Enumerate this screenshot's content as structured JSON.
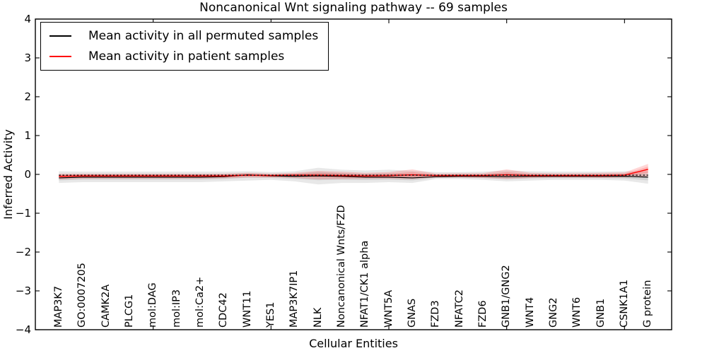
{
  "title": "Noncanonical Wnt signaling pathway -- 69 samples",
  "axes": {
    "xlabel": "Cellular Entities",
    "ylabel": "Inferred Activity",
    "y_tick_labels": [
      "4",
      "3",
      "2",
      "1",
      "0",
      "−1",
      "−2",
      "−3",
      "−4"
    ],
    "y_tick_values": [
      4,
      3,
      2,
      1,
      0,
      -1,
      -2,
      -3,
      -4
    ],
    "x_axis_tick_values": [
      5,
      10,
      15,
      20,
      25
    ]
  },
  "legend": {
    "items": [
      {
        "label": "Mean activity in all permuted samples",
        "color": "#000000"
      },
      {
        "label": "Mean activity in patient samples",
        "color": "#ff0000"
      }
    ]
  },
  "colors": {
    "permuted_line": "#000000",
    "patient_line": "#ff0000",
    "permuted_band": "rgba(0,0,0,0.09)",
    "patient_band": "rgba(255,0,0,0.16)",
    "frame": "#000000",
    "background": "#ffffff"
  },
  "chart_data": {
    "type": "line",
    "title": "Noncanonical Wnt signaling pathway -- 69 samples",
    "xlabel": "Cellular Entities",
    "ylabel": "Inferred Activity",
    "ylim": [
      -4,
      4
    ],
    "xlim": [
      0,
      27
    ],
    "grid": false,
    "legend_position": "upper left",
    "categories": [
      "MAP3K7",
      "GO:0007205",
      "CAMK2A",
      "PLCG1",
      "mol:DAG",
      "mol:IP3",
      "mol:Ca2+",
      "CDC42",
      "WNT11",
      "YES1",
      "MAP3K7IP1",
      "NLK",
      "Noncanonical Wnts/FZD",
      "NFAT1/CK1 alpha",
      "WNT5A",
      "GNAS",
      "FZD3",
      "NFATC2",
      "FZD6",
      "GNB1/GNG2",
      "WNT4",
      "GNG2",
      "WNT6",
      "GNB1",
      "CSNK1A1",
      "G protein"
    ],
    "series": [
      {
        "name": "Mean activity in all permuted samples",
        "color": "#000000",
        "values": [
          -0.09,
          -0.07,
          -0.07,
          -0.07,
          -0.07,
          -0.07,
          -0.07,
          -0.06,
          -0.01,
          -0.04,
          -0.05,
          -0.04,
          -0.05,
          -0.07,
          -0.07,
          -0.09,
          -0.06,
          -0.05,
          -0.05,
          -0.06,
          -0.05,
          -0.05,
          -0.05,
          -0.05,
          -0.05,
          -0.07
        ],
        "band_upper": [
          0.08,
          0.07,
          0.07,
          0.07,
          0.07,
          0.07,
          0.07,
          0.07,
          0.08,
          0.06,
          0.08,
          0.17,
          0.12,
          0.1,
          0.12,
          0.09,
          0.06,
          0.06,
          0.07,
          0.1,
          0.08,
          0.07,
          0.07,
          0.07,
          0.08,
          0.08
        ],
        "band_lower": [
          -0.22,
          -0.2,
          -0.2,
          -0.2,
          -0.2,
          -0.2,
          -0.2,
          -0.18,
          -0.16,
          -0.14,
          -0.18,
          -0.26,
          -0.22,
          -0.22,
          -0.2,
          -0.22,
          -0.12,
          -0.12,
          -0.14,
          -0.18,
          -0.16,
          -0.14,
          -0.14,
          -0.14,
          -0.16,
          -0.24
        ]
      },
      {
        "name": "Mean activity in patient samples",
        "color": "#ff0000",
        "values": [
          -0.05,
          -0.04,
          -0.04,
          -0.04,
          -0.04,
          -0.04,
          -0.04,
          -0.04,
          -0.02,
          -0.03,
          -0.02,
          -0.02,
          -0.03,
          -0.04,
          -0.03,
          -0.01,
          -0.03,
          -0.03,
          -0.03,
          -0.01,
          -0.03,
          -0.03,
          -0.03,
          -0.03,
          -0.02,
          0.13
        ],
        "band_upper": [
          0.02,
          0.02,
          0.02,
          0.02,
          0.02,
          0.02,
          0.02,
          0.02,
          0.04,
          0.02,
          0.04,
          0.09,
          0.07,
          0.04,
          0.06,
          0.13,
          0.02,
          0.03,
          0.03,
          0.13,
          0.04,
          0.03,
          0.03,
          0.04,
          0.05,
          0.27
        ],
        "band_lower": [
          -0.13,
          -0.11,
          -0.11,
          -0.11,
          -0.11,
          -0.11,
          -0.11,
          -0.1,
          -0.08,
          -0.08,
          -0.09,
          -0.13,
          -0.12,
          -0.11,
          -0.11,
          -0.12,
          -0.08,
          -0.08,
          -0.09,
          -0.12,
          -0.09,
          -0.08,
          -0.08,
          -0.09,
          -0.08,
          -0.05
        ]
      }
    ],
    "reference_line": {
      "style": "dashed",
      "color": "#000000",
      "value": -0.02
    }
  }
}
